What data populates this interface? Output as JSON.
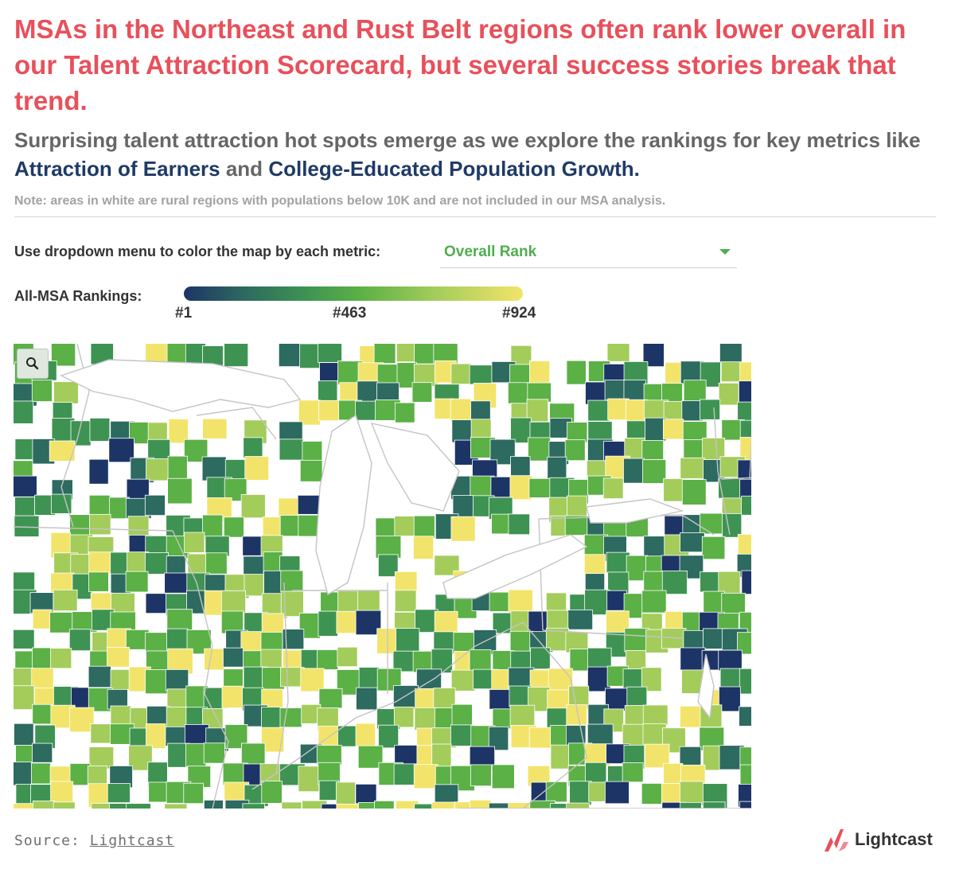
{
  "header": {
    "title": "MSAs in the Northeast and Rust Belt regions often rank lower overall in our Talent Attraction Scorecard, but several success stories break that trend.",
    "subtitle_start": "Surprising talent attraction hot spots emerge as we explore the rankings for key metrics like",
    "subtitle_metric1": "Attraction of Earners",
    "subtitle_and": "and",
    "subtitle_metric2": "College-Educated Population Growth.",
    "note": "Note: areas in white are rural regions with populations below 10K and are not included in our MSA analysis."
  },
  "controls": {
    "dropdown_label": "Use dropdown menu to color the map by each metric:",
    "dropdown_value": "Overall Rank"
  },
  "legend": {
    "label": "All-MSA Rankings:",
    "tick_min": "#1",
    "tick_mid": "#463",
    "tick_max": "#924",
    "colors": [
      "#1d3466",
      "#2d6a60",
      "#3e9352",
      "#5bb046",
      "#a3cc5b",
      "#f2e46a"
    ]
  },
  "map": {
    "zoom_icon": "search-icon",
    "land_color": "#ffffff",
    "water_color": "#ffffff",
    "border_color": "#c4c4c4"
  },
  "footer": {
    "source_label": "Source:",
    "source_link": "Lightcast",
    "brand": "Lightcast",
    "brand_color": "#e8505b"
  }
}
